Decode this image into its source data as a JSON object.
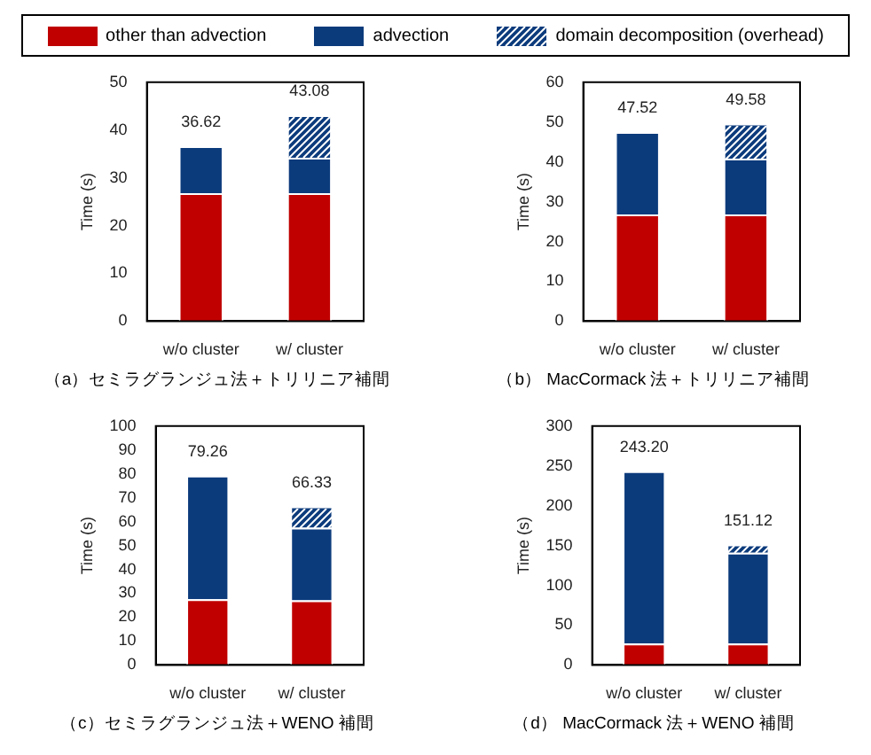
{
  "chart_data": [
    {
      "type": "bar",
      "title": "（a）セミラグランジュ法＋トリリニア補間",
      "ylabel": "Time (s)",
      "categories": [
        "w/o cluster",
        "w/ cluster"
      ],
      "stacked": true,
      "legend": "top",
      "ylim": [
        0,
        50
      ],
      "yticks": [
        0,
        10,
        20,
        30,
        40,
        50
      ],
      "totals": [
        "36.62",
        "43.08"
      ],
      "series": [
        {
          "name": "other than advection",
          "color": "#c00000",
          "values": [
            26.8,
            26.8
          ]
        },
        {
          "name": "advection",
          "color": "#0c3b7c",
          "values": [
            9.82,
            7.4
          ]
        },
        {
          "name": "domain decomposition (overhead)",
          "color": "#0c3b7c",
          "values": [
            null,
            8.88
          ]
        }
      ]
    },
    {
      "type": "bar",
      "title": "（b） MacCormack 法＋トリリニア補間",
      "ylabel": "Time (s)",
      "categories": [
        "w/o cluster",
        "w/ cluster"
      ],
      "stacked": true,
      "ylim": [
        0,
        60
      ],
      "yticks": [
        0,
        10,
        20,
        30,
        40,
        50,
        60
      ],
      "totals": [
        "47.52",
        "49.58"
      ],
      "series": [
        {
          "color": "#c00000",
          "values": [
            26.8,
            26.8
          ]
        },
        {
          "color": "#0c3b7c",
          "values": [
            20.72,
            14.0
          ]
        },
        {
          "color": "#0c3b7c",
          "values": [
            null,
            8.78
          ]
        }
      ]
    },
    {
      "type": "bar",
      "title": "（c）セミラグランジュ法＋WENO 補間",
      "ylabel": "Time (s)",
      "categories": [
        "w/o cluster",
        "w/ cluster"
      ],
      "stacked": true,
      "ylim": [
        0,
        100
      ],
      "yticks": [
        0,
        10,
        20,
        30,
        40,
        50,
        60,
        70,
        80,
        90,
        100
      ],
      "totals": [
        "79.26",
        "66.33"
      ],
      "series": [
        {
          "color": "#c00000",
          "values": [
            27.5,
            27
          ]
        },
        {
          "color": "#0c3b7c",
          "values": [
            51.76,
            30.5
          ]
        },
        {
          "color": "#0c3b7c",
          "values": [
            null,
            8.83
          ]
        }
      ]
    },
    {
      "type": "bar",
      "title": "（d） MacCormack 法＋WENO 補間",
      "ylabel": "Time (s)",
      "categories": [
        "w/o cluster",
        "w/ cluster"
      ],
      "stacked": true,
      "ylim": [
        0,
        300
      ],
      "yticks": [
        0,
        50,
        100,
        150,
        200,
        250,
        300
      ],
      "totals": [
        "243.20",
        "151.12"
      ],
      "series": [
        {
          "color": "#c00000",
          "values": [
            27,
            27
          ]
        },
        {
          "color": "#0c3b7c",
          "values": [
            216.2,
            114
          ]
        },
        {
          "color": "#0c3b7c",
          "values": [
            null,
            10.12
          ]
        }
      ]
    }
  ]
}
